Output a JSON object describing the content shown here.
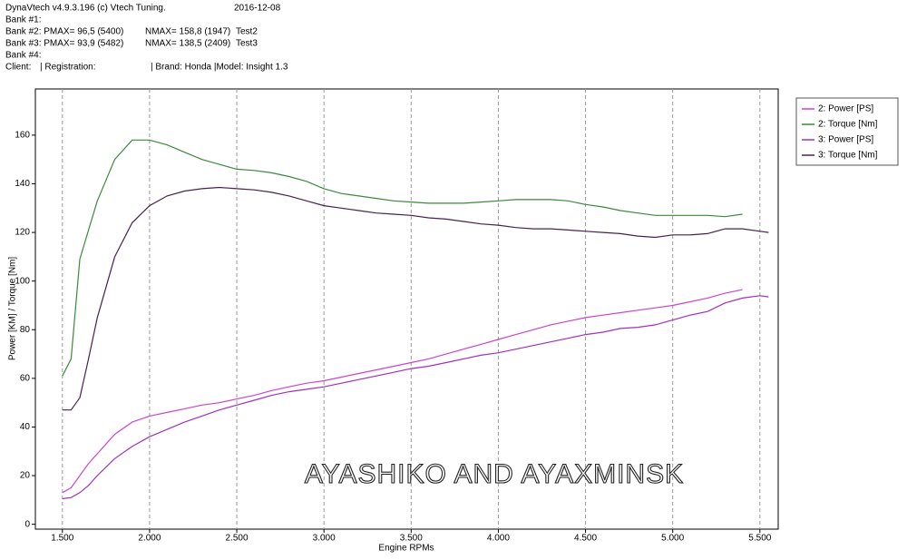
{
  "header": {
    "software": "DynaVtech v4.9.3.196 (c) Vtech Tuning.",
    "date": "2016-12-08",
    "banks": [
      [
        "Bank #1:"
      ],
      [
        "Bank #2: PMAX= 96,5 (5400)",
        "NMAX= 158,8 (1947)",
        "Test2"
      ],
      [
        "Bank #3: PMAX= 93,9 (5482)",
        "NMAX= 138,5 (2409)",
        "Test3"
      ],
      [
        "Bank #4:"
      ]
    ],
    "client": [
      "Client:",
      "| Registration:",
      "| Brand: Honda |Model: Insight 1.3"
    ]
  },
  "chart_data": {
    "type": "line",
    "x_label": "Engine RPMs",
    "y_label": "Power [KM] / Torque [Nm]",
    "annotation": "AYASHIKO AND AYAXMINSK",
    "x": [
      1500,
      1550,
      1600,
      1650,
      1700,
      1800,
      1900,
      2000,
      2100,
      2200,
      2300,
      2400,
      2500,
      2600,
      2700,
      2800,
      2900,
      3000,
      3100,
      3200,
      3300,
      3400,
      3500,
      3600,
      3700,
      3800,
      3900,
      4000,
      4100,
      4200,
      4300,
      4400,
      4500,
      4600,
      4700,
      4800,
      4900,
      5000,
      5100,
      5200,
      5300,
      5400,
      5500,
      5550
    ],
    "series": [
      {
        "name": "2: Power [PS]",
        "color": "#cc44cc",
        "values": [
          13,
          15,
          20,
          25,
          29,
          37,
          42,
          44.5,
          46,
          47.5,
          49,
          50,
          51.5,
          53,
          55,
          56.5,
          58,
          59,
          60.5,
          62,
          63.5,
          65,
          66.5,
          68,
          70,
          72,
          74,
          76,
          78,
          80,
          82,
          83.5,
          85,
          86,
          87,
          88,
          89,
          90,
          91.5,
          93,
          95,
          96.5,
          null,
          null
        ]
      },
      {
        "name": "2: Torque [Nm]",
        "color": "#3a8a3a",
        "values": [
          61,
          68,
          109,
          121,
          133,
          150,
          158,
          158,
          156,
          153,
          150,
          148,
          146,
          145.5,
          144.5,
          143,
          141,
          138,
          136,
          135,
          134,
          133,
          132.5,
          132,
          132,
          132,
          132.5,
          133,
          133.5,
          133.5,
          133.5,
          133,
          131.5,
          130.5,
          129,
          128,
          127,
          127,
          127,
          127,
          126.5,
          127.5,
          null,
          null
        ]
      },
      {
        "name": "3: Power [PS]",
        "color": "#a030c0",
        "values": [
          10.5,
          11,
          13,
          16,
          20,
          27,
          32,
          36,
          39,
          42,
          44.5,
          47,
          49,
          51,
          53,
          54.5,
          55.5,
          56.5,
          58,
          59.5,
          61,
          62.5,
          64,
          65,
          66.5,
          68,
          69.5,
          70.5,
          72,
          73.5,
          75,
          76.5,
          78,
          79,
          80.5,
          81,
          82,
          84,
          86,
          87.5,
          91,
          93,
          94,
          93.5
        ]
      },
      {
        "name": "3: Torque [Nm]",
        "color": "#4a2050",
        "values": [
          47,
          47,
          52,
          68,
          85,
          110,
          124,
          131,
          135,
          137,
          138,
          138.5,
          138,
          137.5,
          136.5,
          135,
          133,
          131,
          130,
          129,
          128,
          127.5,
          127,
          126,
          125.5,
          124.5,
          123.5,
          123,
          122,
          121.5,
          121.5,
          121,
          120.5,
          120,
          119.5,
          118.5,
          118,
          119,
          119,
          119.5,
          121.5,
          121.5,
          120.5,
          120
        ]
      }
    ],
    "xlim": [
      1345,
      5605
    ],
    "ylim": [
      -2,
      179
    ],
    "xticks": [
      {
        "value": 1500,
        "label": "1.500"
      },
      {
        "value": 2000,
        "label": "2.000"
      },
      {
        "value": 2500,
        "label": "2.500"
      },
      {
        "value": 3000,
        "label": "3.000"
      },
      {
        "value": 3500,
        "label": "3.500"
      },
      {
        "value": 4000,
        "label": "4.000"
      },
      {
        "value": 4500,
        "label": "4.500"
      },
      {
        "value": 5000,
        "label": "5.000"
      },
      {
        "value": 5500,
        "label": "5.500"
      }
    ],
    "yticks": [
      0,
      20,
      40,
      60,
      80,
      100,
      120,
      140,
      160
    ],
    "grid": "x",
    "legend": "right"
  }
}
